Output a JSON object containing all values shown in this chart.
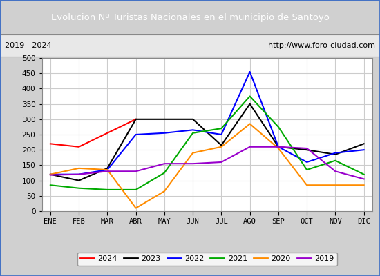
{
  "title": "Evolucion Nº Turistas Nacionales en el municipio de Santoyo",
  "subtitle_left": "2019 - 2024",
  "subtitle_right": "http://www.foro-ciudad.com",
  "title_bg_color": "#4472c4",
  "title_text_color": "#ffffff",
  "months": [
    "ENE",
    "FEB",
    "MAR",
    "ABR",
    "MAY",
    "JUN",
    "JUL",
    "AGO",
    "SEP",
    "OCT",
    "NOV",
    "DIC"
  ],
  "ylim": [
    0,
    500
  ],
  "yticks": [
    0,
    50,
    100,
    150,
    200,
    250,
    300,
    350,
    400,
    450,
    500
  ],
  "series": {
    "2024": {
      "color": "#ff0000",
      "data": [
        220,
        210,
        null,
        300,
        null,
        null,
        null,
        null,
        null,
        null,
        null,
        null
      ]
    },
    "2023": {
      "color": "#000000",
      "data": [
        120,
        100,
        140,
        300,
        300,
        300,
        215,
        350,
        210,
        200,
        185,
        220
      ]
    },
    "2022": {
      "color": "#0000ff",
      "data": [
        120,
        120,
        135,
        250,
        255,
        265,
        250,
        455,
        210,
        160,
        190,
        200
      ]
    },
    "2021": {
      "color": "#00aa00",
      "data": [
        85,
        75,
        70,
        70,
        125,
        255,
        270,
        375,
        275,
        135,
        165,
        120
      ]
    },
    "2020": {
      "color": "#ff8c00",
      "data": [
        120,
        140,
        135,
        10,
        65,
        190,
        210,
        285,
        205,
        85,
        85,
        85
      ]
    },
    "2019": {
      "color": "#9900cc",
      "data": [
        118,
        120,
        130,
        130,
        155,
        155,
        160,
        210,
        210,
        205,
        130,
        105
      ]
    }
  },
  "legend_order": [
    "2024",
    "2023",
    "2022",
    "2021",
    "2020",
    "2019"
  ],
  "bg_color": "#d0d0d0",
  "plot_bg_color": "#ffffff",
  "grid_color": "#cccccc",
  "subtitle_bg": "#e8e8e8",
  "outer_border_color": "#4472c4"
}
